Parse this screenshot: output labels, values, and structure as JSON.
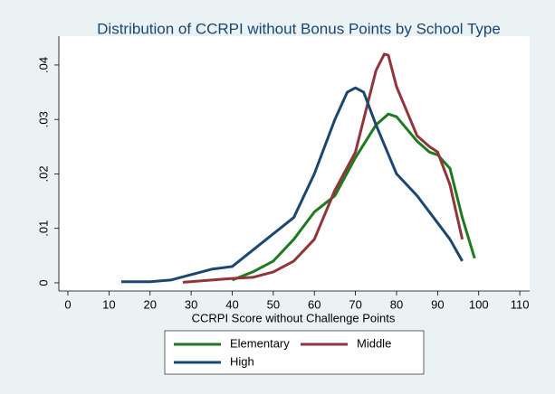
{
  "chart_data": {
    "type": "line",
    "title": "Distribution of CCRPI without Bonus Points by School Type",
    "x_label": "CCRPI Score without Challenge Points",
    "xlim": [
      -2.2,
      112.4
    ],
    "xticks": [
      0,
      10,
      20,
      30,
      40,
      50,
      60,
      70,
      80,
      90,
      100,
      110
    ],
    "ylim": [
      -0.0015,
      0.0453
    ],
    "yticks": [
      0,
      {
        "value": 0.01,
        "label": ".01"
      },
      {
        "value": 0.02,
        "label": ".02"
      },
      {
        "value": 0.03,
        "label": ".03"
      },
      {
        "value": 0.04,
        "label": ".04"
      }
    ],
    "series": [
      {
        "name": "Elementary",
        "color": "#1e7a1e",
        "x": [
          40,
          45,
          50,
          55,
          60,
          65,
          70,
          75,
          78,
          80,
          85,
          88,
          90,
          93,
          96,
          99
        ],
        "values": [
          0.0005,
          0.002,
          0.004,
          0.008,
          0.013,
          0.016,
          0.023,
          0.029,
          0.031,
          0.0305,
          0.026,
          0.024,
          0.0235,
          0.021,
          0.012,
          0.0045
        ]
      },
      {
        "name": "Middle",
        "color": "#90353b",
        "x": [
          28,
          35,
          40,
          45,
          50,
          55,
          60,
          65,
          70,
          73,
          75,
          77,
          78,
          80,
          85,
          88,
          90,
          93,
          96
        ],
        "values": [
          0.0001,
          0.0005,
          0.0008,
          0.001,
          0.002,
          0.004,
          0.008,
          0.017,
          0.024,
          0.033,
          0.039,
          0.042,
          0.0418,
          0.036,
          0.027,
          0.025,
          0.024,
          0.018,
          0.008
        ]
      },
      {
        "name": "High",
        "color": "#1a476f",
        "x": [
          13,
          20,
          25,
          30,
          35,
          40,
          45,
          50,
          55,
          60,
          65,
          68,
          70,
          72,
          75,
          80,
          85,
          90,
          93,
          96
        ],
        "values": [
          0.0002,
          0.0002,
          0.0005,
          0.0015,
          0.0025,
          0.003,
          0.006,
          0.009,
          0.012,
          0.02,
          0.03,
          0.035,
          0.0358,
          0.035,
          0.029,
          0.02,
          0.016,
          0.011,
          0.008,
          0.004
        ]
      }
    ]
  }
}
